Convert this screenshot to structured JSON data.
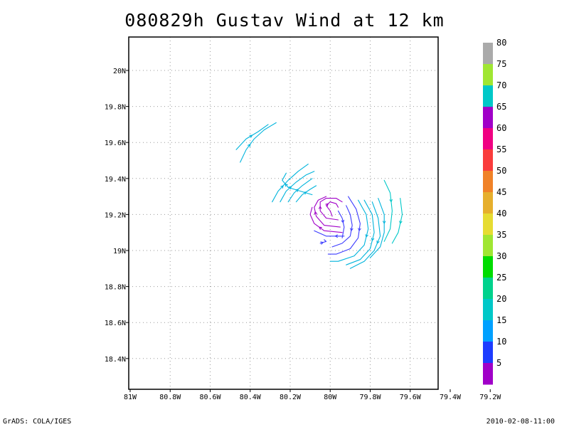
{
  "title": "080829h Gustav Wind at 12 km",
  "footer": {
    "left": "GrADS: COLA/IGES",
    "right": "2010-02-08-11:00"
  },
  "chart_data": {
    "type": "streamline",
    "title": "080829h Gustav Wind at 12 km",
    "xlim": [
      -81.0,
      -79.2
    ],
    "ylim": [
      18.25,
      20.2
    ],
    "x_ticks": [
      {
        "value": -81.0,
        "label": "81W"
      },
      {
        "value": -80.8,
        "label": "80.8W"
      },
      {
        "value": -80.6,
        "label": "80.6W"
      },
      {
        "value": -80.4,
        "label": "80.4W"
      },
      {
        "value": -80.2,
        "label": "80.2W"
      },
      {
        "value": -80.0,
        "label": "80W"
      },
      {
        "value": -79.8,
        "label": "79.8W"
      },
      {
        "value": -79.6,
        "label": "79.6W"
      },
      {
        "value": -79.4,
        "label": "79.4W"
      },
      {
        "value": -79.2,
        "label": "79.2W"
      }
    ],
    "y_ticks": [
      {
        "value": 18.4,
        "label": "18.4N"
      },
      {
        "value": 18.6,
        "label": "18.6N"
      },
      {
        "value": 18.8,
        "label": "18.8N"
      },
      {
        "value": 19.0,
        "label": "19N"
      },
      {
        "value": 19.2,
        "label": "19.2N"
      },
      {
        "value": 19.4,
        "label": "19.4N"
      },
      {
        "value": 19.6,
        "label": "19.6N"
      },
      {
        "value": 19.8,
        "label": "19.8N"
      },
      {
        "value": 20.0,
        "label": "20N"
      }
    ],
    "grid": true,
    "colorbar": {
      "colors": [
        "#a000c8",
        "#1e3cff",
        "#00a0ff",
        "#00c8c8",
        "#00d28c",
        "#00dc00",
        "#a0e632",
        "#e6dc32",
        "#e6af2d",
        "#f08228",
        "#fa3c3c",
        "#f00082",
        "#a000c8",
        "#00c8c8",
        "#a0e632",
        "#aaaaaa"
      ],
      "labels": [
        "5",
        "10",
        "15",
        "20",
        "25",
        "30",
        "35",
        "40",
        "45",
        "50",
        "55",
        "60",
        "65",
        "70",
        "75",
        "80"
      ]
    },
    "streamlines": [
      {
        "color": "#00b4dc",
        "points": [
          [
            -80.45,
            19.49
          ],
          [
            -80.42,
            19.56
          ],
          [
            -80.38,
            19.62
          ],
          [
            -80.33,
            19.67
          ],
          [
            -80.27,
            19.71
          ]
        ]
      },
      {
        "color": "#00b4dc",
        "points": [
          [
            -80.47,
            19.56
          ],
          [
            -80.42,
            19.62
          ],
          [
            -80.36,
            19.66
          ],
          [
            -80.31,
            19.7
          ]
        ]
      },
      {
        "color": "#00b4dc",
        "points": [
          [
            -80.29,
            19.27
          ],
          [
            -80.26,
            19.33
          ],
          [
            -80.21,
            19.39
          ],
          [
            -80.16,
            19.44
          ],
          [
            -80.11,
            19.48
          ]
        ]
      },
      {
        "color": "#00b4dc",
        "points": [
          [
            -80.25,
            19.27
          ],
          [
            -80.22,
            19.33
          ],
          [
            -80.17,
            19.38
          ],
          [
            -80.12,
            19.42
          ],
          [
            -80.08,
            19.44
          ]
        ]
      },
      {
        "color": "#00b4dc",
        "points": [
          [
            -80.21,
            19.27
          ],
          [
            -80.18,
            19.32
          ],
          [
            -80.14,
            19.36
          ],
          [
            -80.09,
            19.4
          ]
        ]
      },
      {
        "color": "#00b4dc",
        "points": [
          [
            -80.17,
            19.27
          ],
          [
            -80.14,
            19.31
          ],
          [
            -80.1,
            19.34
          ],
          [
            -80.07,
            19.36
          ]
        ]
      },
      {
        "color": "#00b4dc",
        "points": [
          [
            -80.09,
            19.31
          ],
          [
            -80.21,
            19.35
          ],
          [
            -80.24,
            19.39
          ],
          [
            -80.22,
            19.43
          ]
        ]
      },
      {
        "color": "#a000c8",
        "points": [
          [
            -79.99,
            19.19
          ],
          [
            -80.0,
            19.22
          ],
          [
            -80.02,
            19.25
          ],
          [
            -80.0,
            19.27
          ],
          [
            -79.97,
            19.26
          ],
          [
            -79.96,
            19.24
          ]
        ]
      },
      {
        "color": "#a000c8",
        "points": [
          [
            -79.96,
            19.17
          ],
          [
            -80.02,
            19.18
          ],
          [
            -80.05,
            19.22
          ],
          [
            -80.05,
            19.27
          ],
          [
            -80.02,
            19.29
          ],
          [
            -79.97,
            19.29
          ],
          [
            -79.94,
            19.27
          ]
        ]
      },
      {
        "color": "#a000c8",
        "points": [
          [
            -79.95,
            19.13
          ],
          [
            -80.03,
            19.14
          ],
          [
            -80.07,
            19.19
          ],
          [
            -80.08,
            19.24
          ],
          [
            -80.06,
            19.28
          ],
          [
            -80.02,
            19.3
          ]
        ]
      },
      {
        "color": "#a000c8",
        "points": [
          [
            -79.94,
            19.1
          ],
          [
            -80.03,
            19.11
          ],
          [
            -80.08,
            19.15
          ],
          [
            -80.1,
            19.2
          ],
          [
            -80.09,
            19.24
          ]
        ]
      },
      {
        "color": "#3c3cff",
        "points": [
          [
            -79.93,
            19.08
          ],
          [
            -80.02,
            19.08
          ],
          [
            -80.08,
            19.11
          ]
        ]
      },
      {
        "color": "#3c3cff",
        "points": [
          [
            -79.96,
            19.22
          ],
          [
            -79.94,
            19.18
          ],
          [
            -79.93,
            19.13
          ],
          [
            -79.94,
            19.07
          ]
        ]
      },
      {
        "color": "#3c3cff",
        "points": [
          [
            -79.92,
            19.25
          ],
          [
            -79.9,
            19.2
          ],
          [
            -79.89,
            19.14
          ],
          [
            -79.9,
            19.08
          ],
          [
            -79.94,
            19.04
          ],
          [
            -79.99,
            19.02
          ]
        ]
      },
      {
        "color": "#3c3cff",
        "points": [
          [
            -79.91,
            19.3
          ],
          [
            -79.87,
            19.23
          ],
          [
            -79.85,
            19.15
          ],
          [
            -79.86,
            19.07
          ],
          [
            -79.9,
            19.01
          ],
          [
            -79.97,
            18.98
          ],
          [
            -80.01,
            18.98
          ]
        ]
      },
      {
        "color": "#3c3cff",
        "points": [
          [
            -80.05,
            19.04
          ],
          [
            -80.02,
            19.05
          ],
          [
            -80.03,
            19.06
          ]
        ]
      },
      {
        "color": "#00b4dc",
        "points": [
          [
            -79.86,
            19.28
          ],
          [
            -79.82,
            19.2
          ],
          [
            -79.81,
            19.12
          ],
          [
            -79.83,
            19.03
          ],
          [
            -79.88,
            18.97
          ],
          [
            -79.96,
            18.94
          ],
          [
            -80.0,
            18.94
          ]
        ]
      },
      {
        "color": "#00b4dc",
        "points": [
          [
            -79.83,
            19.28
          ],
          [
            -79.79,
            19.2
          ],
          [
            -79.78,
            19.1
          ],
          [
            -79.8,
            19.01
          ],
          [
            -79.85,
            18.95
          ],
          [
            -79.92,
            18.92
          ]
        ]
      },
      {
        "color": "#00b4dc",
        "points": [
          [
            -79.79,
            19.27
          ],
          [
            -79.76,
            19.18
          ],
          [
            -79.75,
            19.08
          ],
          [
            -79.78,
            19.0
          ],
          [
            -79.83,
            18.94
          ],
          [
            -79.9,
            18.9
          ]
        ]
      },
      {
        "color": "#00b4dc",
        "points": [
          [
            -79.76,
            19.29
          ],
          [
            -79.73,
            19.2
          ],
          [
            -79.73,
            19.1
          ],
          [
            -79.75,
            19.02
          ],
          [
            -79.8,
            18.96
          ]
        ]
      },
      {
        "color": "#00c8c8",
        "points": [
          [
            -79.73,
            19.39
          ],
          [
            -79.7,
            19.32
          ],
          [
            -79.69,
            19.22
          ],
          [
            -79.7,
            19.12
          ],
          [
            -79.73,
            19.05
          ]
        ]
      },
      {
        "color": "#00c8c8",
        "points": [
          [
            -79.65,
            19.29
          ],
          [
            -79.64,
            19.2
          ],
          [
            -79.66,
            19.1
          ],
          [
            -79.69,
            19.04
          ]
        ]
      }
    ]
  }
}
